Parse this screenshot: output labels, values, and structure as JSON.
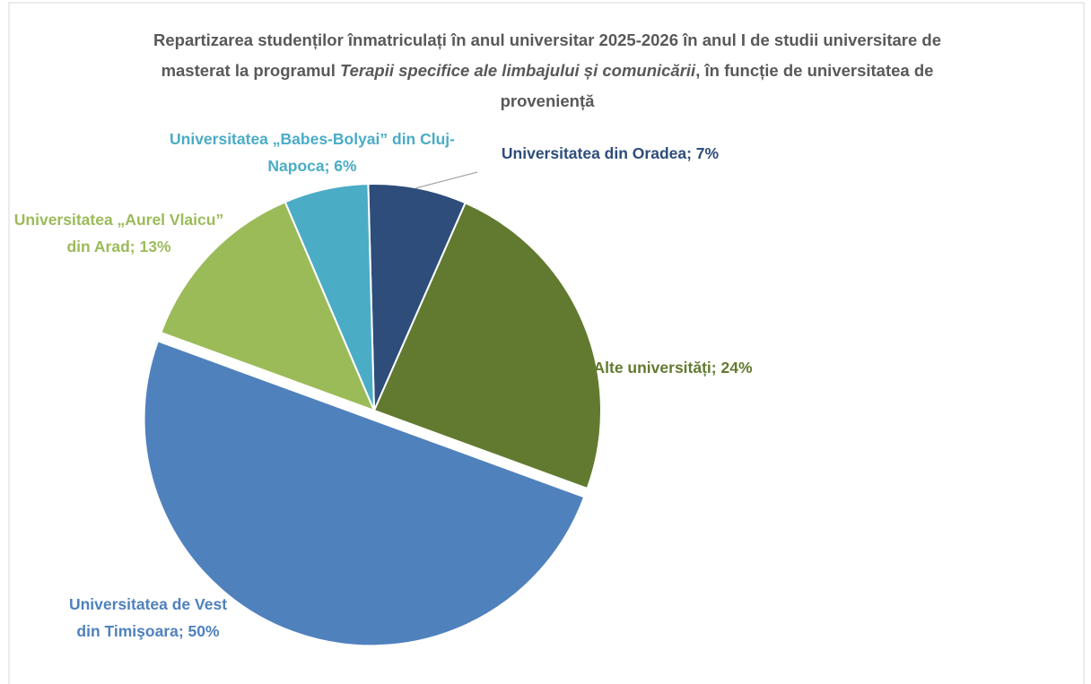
{
  "chart_data": {
    "type": "pie",
    "title": [
      "Repartizarea studenților înmatriculați în anul universitar 2025-2026 în anul I de studii universitare de masterat la programul ",
      "Terapii specifice ale limbajului și comunicării",
      ", în funcție de universitatea de proveniență"
    ],
    "values": [
      7,
      24,
      50,
      13,
      6
    ],
    "value_labels": [
      "Universitatea din Oradea; 7%",
      "Alte universități; 24%",
      "Universitatea de Vest din Timişoara; 50%",
      "Universitatea „Aurel Vlaicu” din Arad; 13%",
      "Universitatea „Babes-Bolyai” din Cluj-Napoca; 6%"
    ],
    "colors": [
      "#2e4d7a",
      "#627a30",
      "#4f81bd",
      "#9bbb59",
      "#4bacc6"
    ],
    "explode": [
      false,
      false,
      true,
      false,
      false
    ]
  }
}
